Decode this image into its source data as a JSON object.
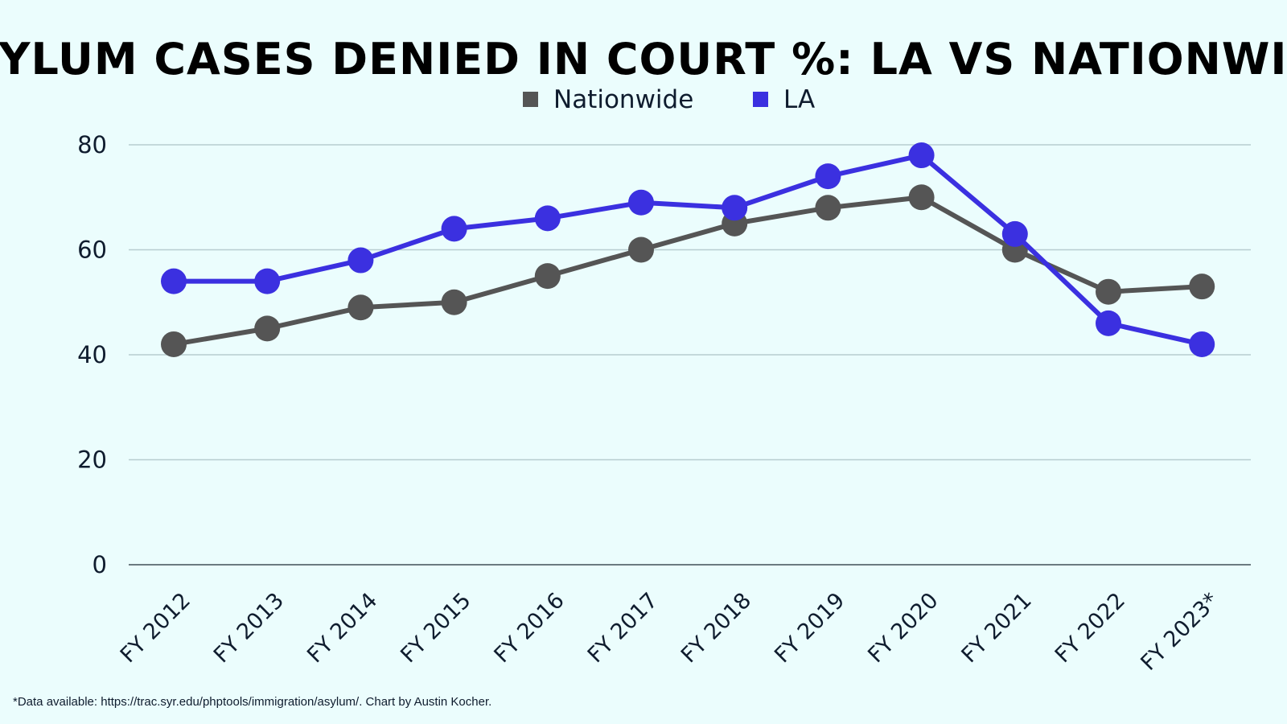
{
  "chart_data": {
    "type": "line",
    "title": "ASYLUM CASES DENIED IN COURT %: LA VS NATIONWIDE",
    "categories": [
      "FY 2012",
      "FY 2013",
      "FY 2014",
      "FY 2015",
      "FY 2016",
      "FY 2017",
      "FY 2018",
      "FY 2019",
      "FY 2020",
      "FY 2021",
      "FY 2022",
      "FY 2023*"
    ],
    "series": [
      {
        "name": "Nationwide",
        "color": "#555555",
        "values": [
          42,
          45,
          49,
          50,
          55,
          60,
          65,
          68,
          70,
          60,
          52,
          53
        ]
      },
      {
        "name": "LA",
        "color": "#3b30e0",
        "values": [
          54,
          54,
          58,
          64,
          66,
          69,
          68,
          74,
          78,
          63,
          46,
          42
        ]
      }
    ],
    "ylim": [
      0,
      80
    ],
    "yticks": [
      0,
      20,
      40,
      60,
      80
    ],
    "grid": true,
    "legend_position": "top-center",
    "xlabel": "",
    "ylabel": ""
  },
  "footnote": "*Data available: https://trac.syr.edu/phptools/immigration/asylum/. Chart by Austin Kocher."
}
